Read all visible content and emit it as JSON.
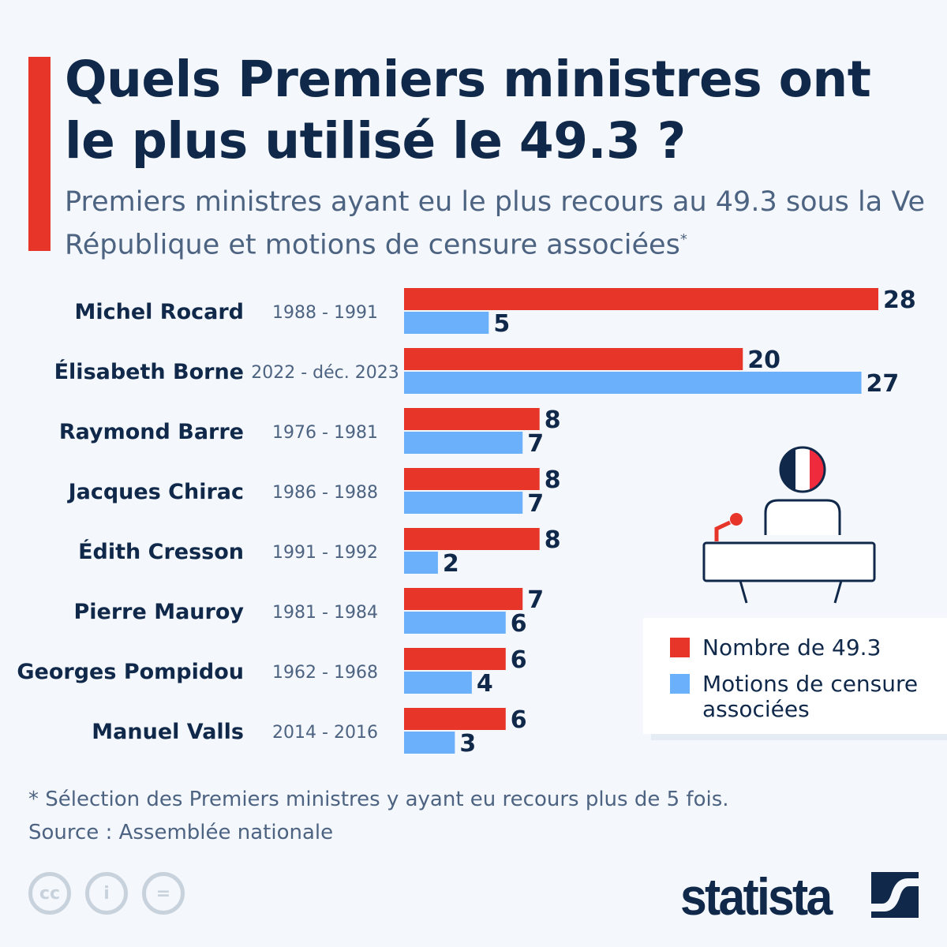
{
  "title": "Quels Premiers ministres ont le plus utilisé le 49.3 ?",
  "subtitle": "Premiers ministres ayant eu le plus recours au 49.3 sous la Ve République et motions de censure associées",
  "subtitle_mark": "*",
  "footnote": "* Sélection des Premiers ministres y ayant eu recours plus de 5 fois.",
  "source": "Source : Assemblée nationale",
  "brand": "statista",
  "license_icons": [
    "cc-icon",
    "attribution-icon",
    "no-derivatives-icon"
  ],
  "colors": {
    "red": "#e8352a",
    "blue": "#6ab0fb",
    "navy": "#10294a"
  },
  "chart_data": {
    "type": "bar",
    "orientation": "horizontal",
    "categories": [
      "Michel Rocard",
      "Élisabeth Borne",
      "Raymond Barre",
      "Jacques Chirac",
      "Édith Cresson",
      "Pierre Mauroy",
      "Georges Pompidou",
      "Manuel Valls"
    ],
    "periods": [
      "1988 - 1991",
      "2022 - déc. 2023",
      "1976 - 1981",
      "1986 - 1988",
      "1991 - 1992",
      "1981 - 1984",
      "1962 - 1968",
      "2014 - 2016"
    ],
    "series": [
      {
        "name": "Nombre de 49.3",
        "color": "#e8352a",
        "values": [
          28,
          20,
          8,
          8,
          8,
          7,
          6,
          6
        ]
      },
      {
        "name": "Motions de censure associées",
        "color": "#6ab0fb",
        "values": [
          5,
          27,
          7,
          7,
          2,
          6,
          4,
          3
        ]
      }
    ],
    "xlim": [
      0,
      28
    ],
    "grid": false,
    "legend_position": "bottom-right"
  }
}
